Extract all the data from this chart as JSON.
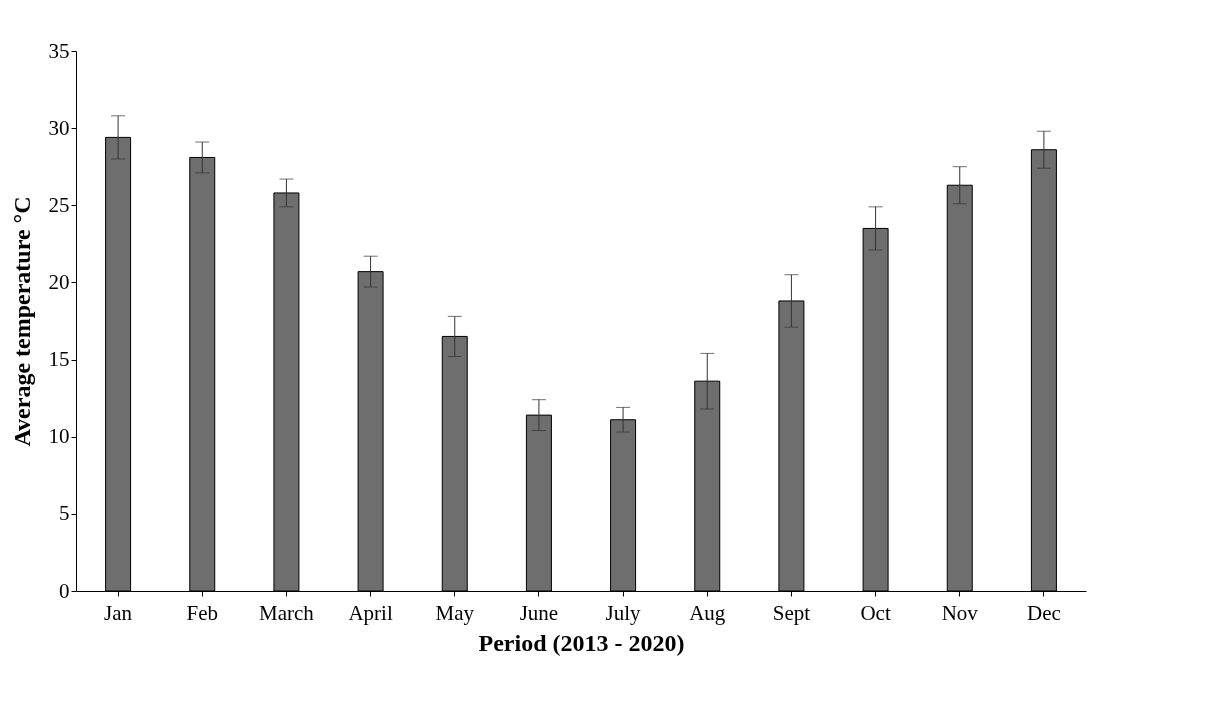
{
  "chart_data": {
    "type": "bar",
    "xlabel": "Period (2013 - 2020)",
    "ylabel": "Average temperature °C",
    "categories": [
      "Jan",
      "Feb",
      "March",
      "April",
      "May",
      "June",
      "July",
      "Aug",
      "Sept",
      "Oct",
      "Nov",
      "Dec"
    ],
    "values": [
      29.4,
      28.1,
      25.8,
      20.7,
      16.5,
      11.4,
      11.1,
      13.6,
      18.8,
      23.5,
      26.3,
      28.6
    ],
    "errors": [
      1.4,
      1.0,
      0.9,
      1.0,
      1.3,
      1.0,
      0.8,
      1.8,
      1.7,
      1.4,
      1.2,
      1.2
    ],
    "color": "#6e6e6e",
    "ylim": [
      0,
      35
    ],
    "yticks": [
      0,
      5,
      10,
      15,
      20,
      25,
      30,
      35
    ],
    "grid": false
  }
}
